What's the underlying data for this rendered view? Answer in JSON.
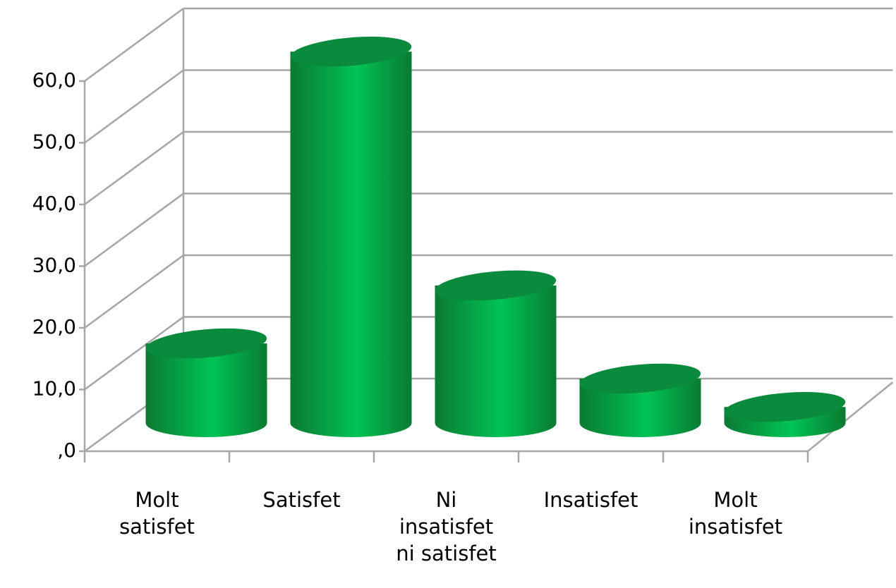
{
  "chart_data": {
    "type": "bar3d",
    "categories": [
      "Molt satisfet",
      "Satisfet",
      "Ni insatisfet ni satisfet",
      "Insatisfet",
      "Molt insatisfet"
    ],
    "values": [
      12.9,
      60.2,
      22.3,
      7.2,
      2.6
    ],
    "color": "#00b04c",
    "ylim": [
      0,
      60
    ],
    "yticks": [
      {
        "value": 0,
        "label": ",0"
      },
      {
        "value": 10,
        "label": "10,0"
      },
      {
        "value": 20,
        "label": "20,0"
      },
      {
        "value": 30,
        "label": "30,0"
      },
      {
        "value": 40,
        "label": "40,0"
      },
      {
        "value": 50,
        "label": "50,0"
      },
      {
        "value": 60,
        "label": "60,0"
      }
    ],
    "grid": true
  }
}
